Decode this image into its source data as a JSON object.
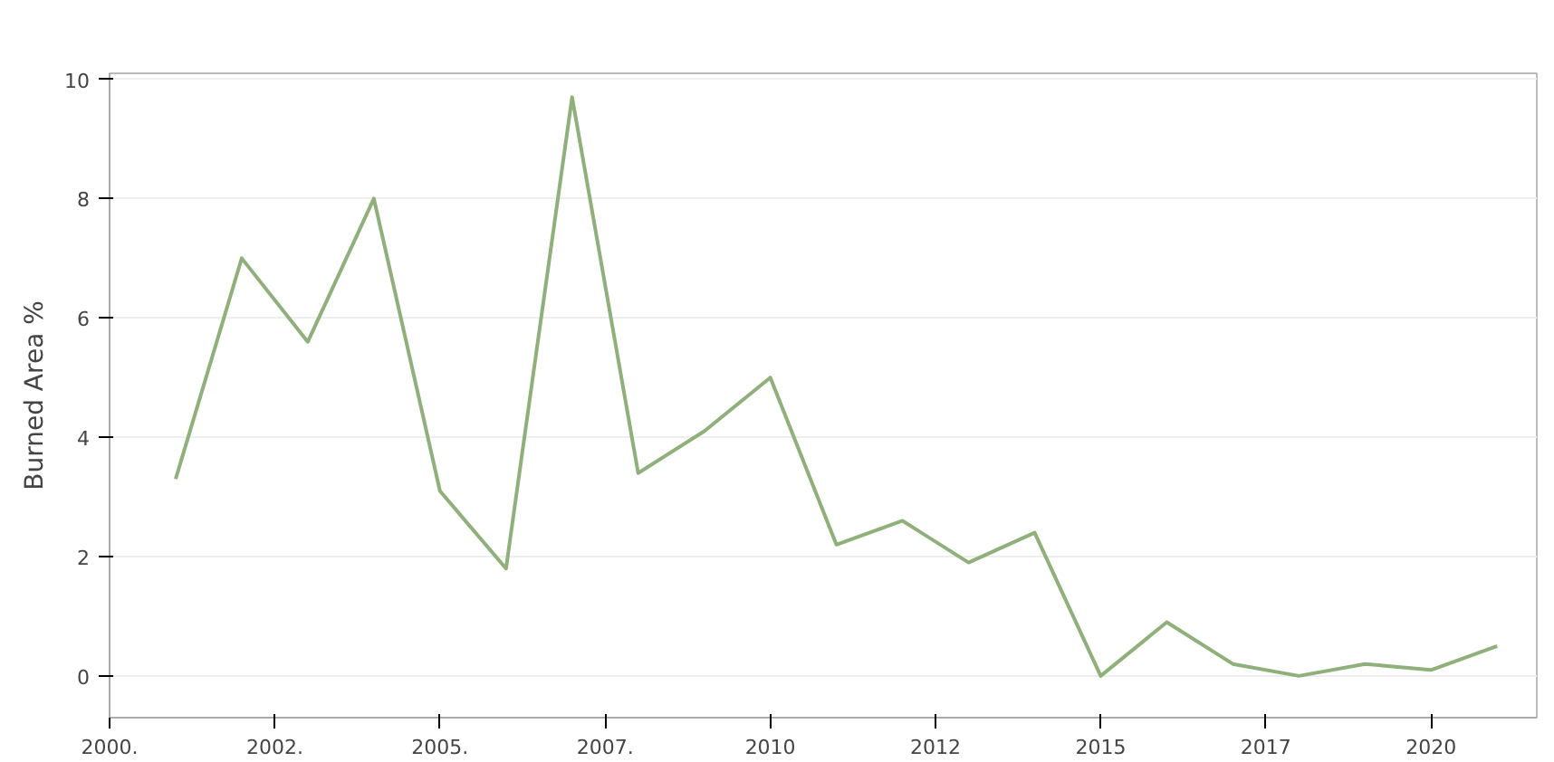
{
  "chart_data": {
    "type": "line",
    "ylabel": "Burned Area %",
    "x": [
      2001,
      2002,
      2003,
      2004,
      2005,
      2006,
      2007,
      2008,
      2009,
      2010,
      2011,
      2012,
      2013,
      2014,
      2015,
      2016,
      2017,
      2018,
      2019,
      2020,
      2021
    ],
    "series": [
      {
        "color": "#8fb07a",
        "values": [
          3.3,
          7.0,
          5.6,
          8.0,
          3.1,
          1.8,
          9.7,
          3.4,
          4.1,
          5.0,
          2.2,
          2.6,
          1.9,
          2.4,
          0.0,
          0.9,
          0.2,
          0.0,
          0.2,
          0.1,
          0.5
        ]
      }
    ],
    "xlim": [
      2000,
      2021.6
    ],
    "ylim": [
      -0.7,
      10.1
    ],
    "xticks": [
      {
        "value": 2000,
        "label": "2000."
      },
      {
        "value": 2002.5,
        "label": "2002."
      },
      {
        "value": 2005,
        "label": "2005."
      },
      {
        "value": 2007.5,
        "label": "2007."
      },
      {
        "value": 2010,
        "label": "2010"
      },
      {
        "value": 2012.5,
        "label": "2012"
      },
      {
        "value": 2015,
        "label": "2015"
      },
      {
        "value": 2017.5,
        "label": "2017"
      },
      {
        "value": 2020,
        "label": "2020"
      }
    ],
    "yticks": [
      0,
      2,
      4,
      6,
      8,
      10
    ],
    "grid": "y",
    "marker": "none",
    "line_style": "solid"
  }
}
